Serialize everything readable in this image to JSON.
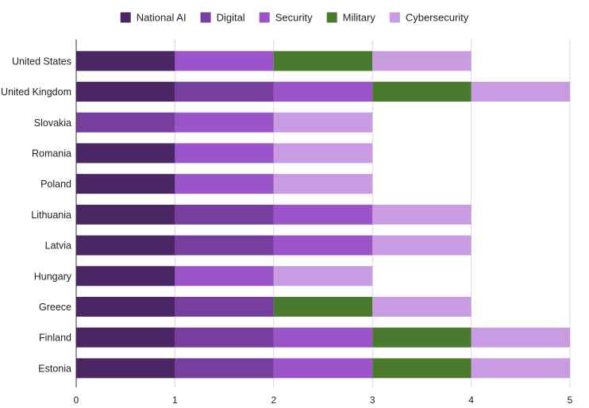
{
  "chart_data": {
    "type": "bar",
    "orientation": "horizontal",
    "stacked": true,
    "categories": [
      "United States",
      "United Kingdom",
      "Slovakia",
      "Romania",
      "Poland",
      "Lithuania",
      "Latvia",
      "Hungary",
      "Greece",
      "Finland",
      "Estonia"
    ],
    "series": [
      {
        "name": "National AI",
        "color": "#4b2665",
        "values": [
          1,
          1,
          0,
          1,
          1,
          1,
          1,
          1,
          1,
          1,
          1
        ]
      },
      {
        "name": "Digital",
        "color": "#773d9f",
        "values": [
          0,
          1,
          1,
          0,
          0,
          1,
          1,
          0,
          1,
          1,
          1
        ]
      },
      {
        "name": "Security",
        "color": "#9b54c9",
        "values": [
          1,
          1,
          1,
          1,
          1,
          1,
          1,
          1,
          0,
          1,
          1
        ]
      },
      {
        "name": "Military",
        "color": "#4a7a2d",
        "values": [
          1,
          1,
          0,
          0,
          0,
          0,
          0,
          0,
          1,
          1,
          1
        ]
      },
      {
        "name": "Cybersecurity",
        "color": "#c89be2",
        "values": [
          1,
          1,
          1,
          1,
          1,
          1,
          1,
          1,
          1,
          1,
          1
        ]
      }
    ],
    "xlim": [
      0,
      5
    ],
    "xticks": [
      "0",
      "1",
      "2",
      "3",
      "4",
      "5"
    ],
    "grid": true,
    "legend_position": "top"
  }
}
